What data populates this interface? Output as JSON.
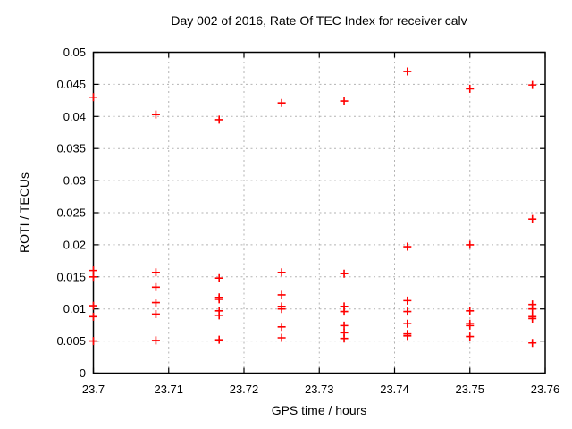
{
  "chart_data": {
    "type": "scatter",
    "title": "Day 002 of 2016, Rate Of TEC Index for receiver calv",
    "xlabel": "GPS time / hours",
    "ylabel": "ROTI / TECUs",
    "xlim": [
      23.7,
      23.76
    ],
    "ylim": [
      0,
      0.05
    ],
    "grid": true,
    "legend_position": "none",
    "marker": {
      "shape": "plus",
      "color": "#ff0000",
      "size": 9
    },
    "xticks": {
      "values": [
        23.7,
        23.71,
        23.72,
        23.73,
        23.74,
        23.75,
        23.76
      ],
      "labels": [
        "23.7",
        "23.71",
        "23.72",
        "23.73",
        "23.74",
        "23.75",
        "23.76"
      ]
    },
    "yticks": {
      "values": [
        0,
        0.005,
        0.01,
        0.015,
        0.02,
        0.025,
        0.03,
        0.035,
        0.04,
        0.045,
        0.05
      ],
      "labels": [
        "0",
        "0.005",
        "0.01",
        "0.015",
        "0.02",
        "0.025",
        "0.03",
        "0.035",
        "0.04",
        "0.045",
        "0.05"
      ]
    },
    "series": [
      {
        "name": "ROTI",
        "points": [
          [
            23.7,
            0.043
          ],
          [
            23.7,
            0.016
          ],
          [
            23.7,
            0.015
          ],
          [
            23.7,
            0.0105
          ],
          [
            23.7,
            0.0088
          ],
          [
            23.7,
            0.005
          ],
          [
            23.7083,
            0.0403
          ],
          [
            23.7083,
            0.0157
          ],
          [
            23.7083,
            0.0134
          ],
          [
            23.7083,
            0.011
          ],
          [
            23.7083,
            0.0092
          ],
          [
            23.7083,
            0.0051
          ],
          [
            23.7167,
            0.0395
          ],
          [
            23.7167,
            0.0148
          ],
          [
            23.7167,
            0.0118
          ],
          [
            23.7167,
            0.0115
          ],
          [
            23.7167,
            0.0097
          ],
          [
            23.7167,
            0.009
          ],
          [
            23.7167,
            0.0052
          ],
          [
            23.725,
            0.0421
          ],
          [
            23.725,
            0.0157
          ],
          [
            23.725,
            0.0122
          ],
          [
            23.725,
            0.0104
          ],
          [
            23.725,
            0.01
          ],
          [
            23.725,
            0.0072
          ],
          [
            23.725,
            0.0055
          ],
          [
            23.7333,
            0.0424
          ],
          [
            23.7333,
            0.0155
          ],
          [
            23.7333,
            0.0104
          ],
          [
            23.7333,
            0.0096
          ],
          [
            23.7333,
            0.0074
          ],
          [
            23.7333,
            0.0063
          ],
          [
            23.7333,
            0.0054
          ],
          [
            23.7417,
            0.047
          ],
          [
            23.7417,
            0.0197
          ],
          [
            23.7417,
            0.0113
          ],
          [
            23.7417,
            0.0096
          ],
          [
            23.7417,
            0.0077
          ],
          [
            23.7417,
            0.0061
          ],
          [
            23.7417,
            0.0058
          ],
          [
            23.75,
            0.0443
          ],
          [
            23.75,
            0.02
          ],
          [
            23.75,
            0.0097
          ],
          [
            23.75,
            0.0077
          ],
          [
            23.75,
            0.0074
          ],
          [
            23.75,
            0.0057
          ],
          [
            23.7583,
            0.0449
          ],
          [
            23.7583,
            0.024
          ],
          [
            23.7583,
            0.0107
          ],
          [
            23.7583,
            0.01
          ],
          [
            23.7583,
            0.0088
          ],
          [
            23.7583,
            0.0085
          ],
          [
            23.7583,
            0.0047
          ]
        ]
      }
    ]
  },
  "colors": {
    "background": "#ffffff",
    "border": "#000000",
    "grid": "#b3b3b3",
    "text": "#000000",
    "marker": "#ff0000"
  }
}
